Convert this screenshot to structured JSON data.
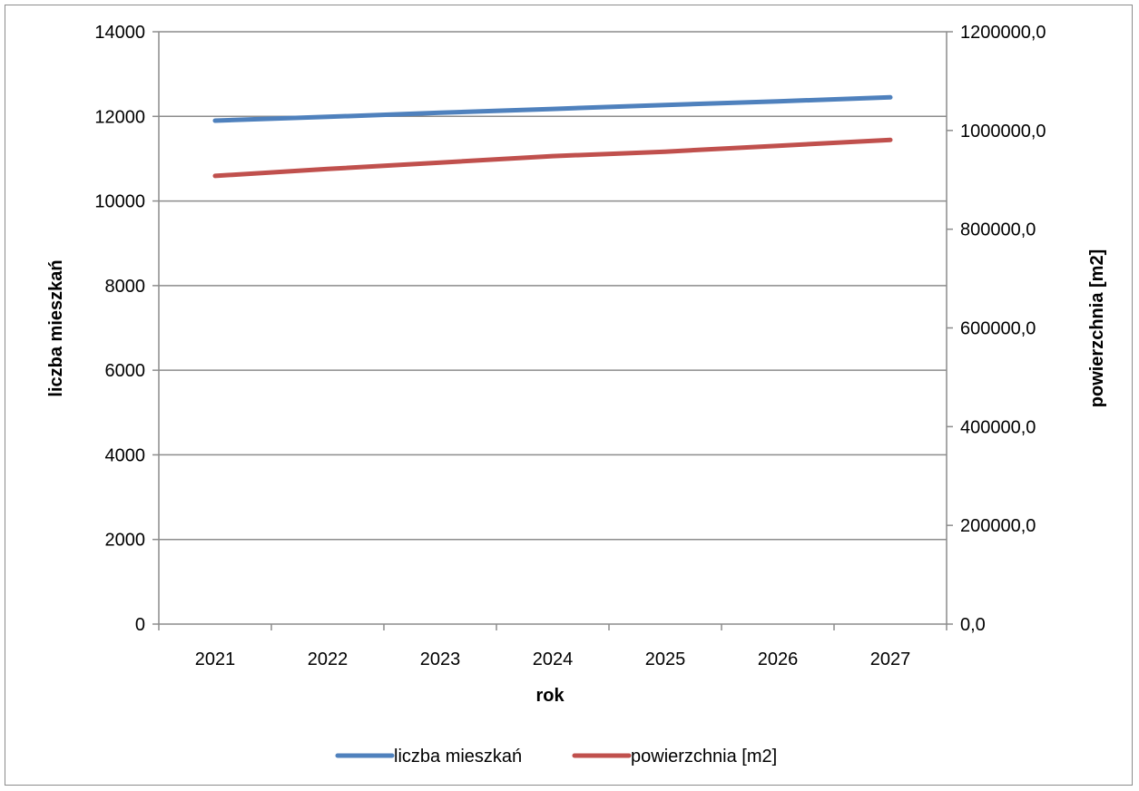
{
  "chart_data": {
    "type": "line",
    "title": "",
    "xlabel": "rok",
    "ylabel": "liczba mieszkań",
    "y2label": "powierzchnia [m2]",
    "categories": [
      "2021",
      "2022",
      "2023",
      "2024",
      "2025",
      "2026",
      "2027"
    ],
    "ylim": [
      0,
      14000
    ],
    "y_ticks": [
      "0",
      "2000",
      "4000",
      "6000",
      "8000",
      "10000",
      "12000",
      "14000"
    ],
    "y2lim": [
      0,
      1200000
    ],
    "y2_ticks": [
      "0,0",
      "200000,0",
      "400000,0",
      "600000,0",
      "800000,0",
      "1000000,0",
      "1200000,0"
    ],
    "grid": true,
    "legend_position": "bottom",
    "series": [
      {
        "name": "liczba mieszkań",
        "axis": "left",
        "color": "#4f81bd",
        "values": [
          11900,
          11990,
          12085,
          12175,
          12270,
          12355,
          12450
        ]
      },
      {
        "name": "powierzchnia [m2]",
        "axis": "right",
        "color": "#c0504d",
        "values": [
          908000,
          922000,
          935000,
          948000,
          957000,
          969000,
          981000
        ]
      }
    ]
  }
}
